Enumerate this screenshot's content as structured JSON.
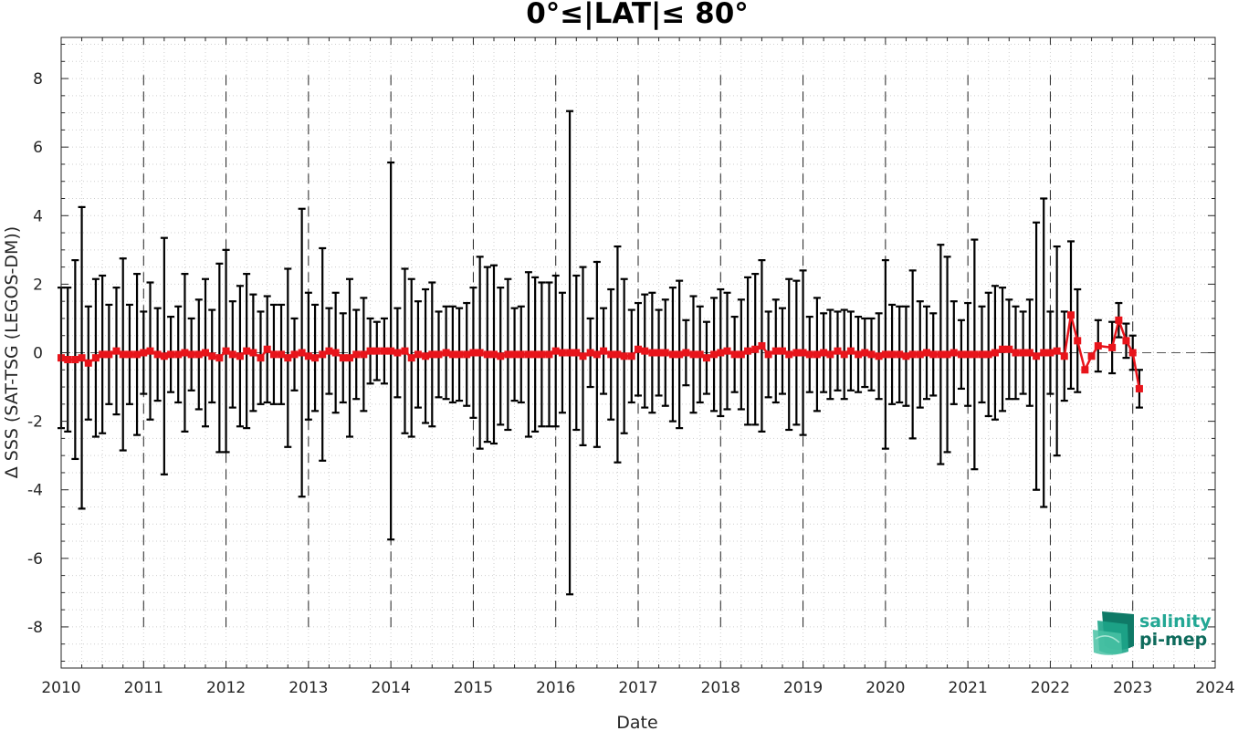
{
  "chart_data": {
    "type": "line",
    "title": "0°≤|LAT|≤ 80°",
    "xlabel": "Date",
    "ylabel": "Δ SSS (SAT-TSG (LEGOS-DM))",
    "xlim": [
      2010,
      2024
    ],
    "ylim": [
      -9.2,
      9.2
    ],
    "x_ticks": [
      2010,
      2011,
      2012,
      2013,
      2014,
      2015,
      2016,
      2017,
      2018,
      2019,
      2020,
      2021,
      2022,
      2023,
      2024
    ],
    "x_tick_labels": [
      "2010",
      "2011",
      "2012",
      "2013",
      "2014",
      "2015",
      "2016",
      "2017",
      "2018",
      "2019",
      "2020",
      "2021",
      "2022",
      "2023",
      "2024"
    ],
    "y_ticks": [
      -8,
      -6,
      -4,
      -2,
      0,
      2,
      4,
      6,
      8
    ],
    "y_tick_labels": [
      "-8",
      "-6",
      "-4",
      "-2",
      "0",
      "2",
      "4",
      "6",
      "8"
    ],
    "grid": "minor dotted",
    "reference_line": 0,
    "year_markers": [
      2011,
      2012,
      2013,
      2014,
      2015,
      2016,
      2017,
      2018,
      2019,
      2020,
      2021,
      2022,
      2023
    ],
    "series": [
      {
        "color": "#e8141b",
        "errorbar_color": "#000000",
        "points": [
          [
            2010.0,
            -0.15,
            2.05
          ],
          [
            2010.08,
            -0.2,
            2.1
          ],
          [
            2010.17,
            -0.2,
            2.9
          ],
          [
            2010.25,
            -0.15,
            4.4
          ],
          [
            2010.33,
            -0.3,
            1.65
          ],
          [
            2010.42,
            -0.15,
            2.3
          ],
          [
            2010.5,
            -0.05,
            2.3
          ],
          [
            2010.58,
            -0.05,
            1.45
          ],
          [
            2010.67,
            0.05,
            1.85
          ],
          [
            2010.75,
            -0.05,
            2.8
          ],
          [
            2010.83,
            -0.05,
            1.45
          ],
          [
            2010.92,
            -0.05,
            2.35
          ],
          [
            2011.0,
            0.0,
            1.2
          ],
          [
            2011.08,
            0.05,
            2.0
          ],
          [
            2011.17,
            -0.05,
            1.35
          ],
          [
            2011.25,
            -0.1,
            3.45
          ],
          [
            2011.33,
            -0.05,
            1.1
          ],
          [
            2011.42,
            -0.05,
            1.4
          ],
          [
            2011.5,
            0.0,
            2.3
          ],
          [
            2011.58,
            -0.05,
            1.05
          ],
          [
            2011.67,
            -0.05,
            1.6
          ],
          [
            2011.75,
            0.0,
            2.15
          ],
          [
            2011.83,
            -0.1,
            1.35
          ],
          [
            2011.92,
            -0.15,
            2.75
          ],
          [
            2012.0,
            0.05,
            2.95
          ],
          [
            2012.08,
            -0.05,
            1.55
          ],
          [
            2012.17,
            -0.1,
            2.05
          ],
          [
            2012.25,
            0.05,
            2.25
          ],
          [
            2012.33,
            0.0,
            1.7
          ],
          [
            2012.42,
            -0.15,
            1.35
          ],
          [
            2012.5,
            0.1,
            1.55
          ],
          [
            2012.58,
            -0.05,
            1.45
          ],
          [
            2012.67,
            -0.05,
            1.45
          ],
          [
            2012.75,
            -0.15,
            2.6
          ],
          [
            2012.83,
            -0.05,
            1.05
          ],
          [
            2012.92,
            0.0,
            4.2
          ],
          [
            2013.0,
            -0.1,
            1.85
          ],
          [
            2013.08,
            -0.15,
            1.55
          ],
          [
            2013.17,
            -0.05,
            3.1
          ],
          [
            2013.25,
            0.05,
            1.25
          ],
          [
            2013.33,
            0.0,
            1.75
          ],
          [
            2013.42,
            -0.15,
            1.3
          ],
          [
            2013.5,
            -0.15,
            2.3
          ],
          [
            2013.58,
            -0.05,
            1.3
          ],
          [
            2013.67,
            -0.05,
            1.65
          ],
          [
            2013.75,
            0.05,
            0.95
          ],
          [
            2013.83,
            0.05,
            0.85
          ],
          [
            2013.92,
            0.05,
            0.95
          ],
          [
            2014.0,
            0.05,
            5.5
          ],
          [
            2014.08,
            0.0,
            1.3
          ],
          [
            2014.17,
            0.05,
            2.4
          ],
          [
            2014.25,
            -0.15,
            2.3
          ],
          [
            2014.33,
            -0.05,
            1.55
          ],
          [
            2014.42,
            -0.1,
            1.95
          ],
          [
            2014.5,
            -0.05,
            2.1
          ],
          [
            2014.58,
            -0.05,
            1.25
          ],
          [
            2014.67,
            0.0,
            1.35
          ],
          [
            2014.75,
            -0.05,
            1.4
          ],
          [
            2014.83,
            -0.05,
            1.35
          ],
          [
            2014.92,
            -0.05,
            1.5
          ],
          [
            2015.0,
            0.0,
            1.9
          ],
          [
            2015.08,
            0.0,
            2.8
          ],
          [
            2015.17,
            -0.05,
            2.55
          ],
          [
            2015.25,
            -0.05,
            2.6
          ],
          [
            2015.33,
            -0.1,
            2.0
          ],
          [
            2015.42,
            -0.05,
            2.2
          ],
          [
            2015.5,
            -0.05,
            1.35
          ],
          [
            2015.58,
            -0.05,
            1.4
          ],
          [
            2015.67,
            -0.05,
            2.4
          ],
          [
            2015.75,
            -0.05,
            2.25
          ],
          [
            2015.83,
            -0.05,
            2.1
          ],
          [
            2015.92,
            -0.05,
            2.1
          ],
          [
            2016.0,
            0.05,
            2.2
          ],
          [
            2016.08,
            0.0,
            1.75
          ],
          [
            2016.17,
            0.0,
            7.05
          ],
          [
            2016.25,
            0.0,
            2.25
          ],
          [
            2016.33,
            -0.1,
            2.6
          ],
          [
            2016.42,
            0.0,
            1.0
          ],
          [
            2016.5,
            -0.05,
            2.7
          ],
          [
            2016.58,
            0.05,
            1.25
          ],
          [
            2016.67,
            -0.05,
            1.9
          ],
          [
            2016.75,
            -0.05,
            3.15
          ],
          [
            2016.83,
            -0.1,
            2.25
          ],
          [
            2016.92,
            -0.1,
            1.35
          ],
          [
            2017.0,
            0.1,
            1.35
          ],
          [
            2017.08,
            0.05,
            1.65
          ],
          [
            2017.17,
            0.0,
            1.75
          ],
          [
            2017.25,
            0.0,
            1.25
          ],
          [
            2017.33,
            0.0,
            1.55
          ],
          [
            2017.42,
            -0.05,
            1.95
          ],
          [
            2017.5,
            -0.05,
            2.15
          ],
          [
            2017.58,
            0.0,
            0.95
          ],
          [
            2017.67,
            -0.05,
            1.7
          ],
          [
            2017.75,
            -0.05,
            1.4
          ],
          [
            2017.83,
            -0.15,
            1.05
          ],
          [
            2017.92,
            -0.05,
            1.65
          ],
          [
            2018.0,
            0.0,
            1.85
          ],
          [
            2018.08,
            0.05,
            1.7
          ],
          [
            2018.17,
            -0.05,
            1.1
          ],
          [
            2018.25,
            -0.05,
            1.6
          ],
          [
            2018.33,
            0.05,
            2.15
          ],
          [
            2018.42,
            0.1,
            2.2
          ],
          [
            2018.5,
            0.2,
            2.5
          ],
          [
            2018.58,
            -0.05,
            1.25
          ],
          [
            2018.67,
            0.05,
            1.5
          ],
          [
            2018.75,
            0.05,
            1.25
          ],
          [
            2018.83,
            -0.05,
            2.2
          ],
          [
            2018.92,
            0.0,
            2.1
          ],
          [
            2019.0,
            0.0,
            2.4
          ],
          [
            2019.08,
            -0.05,
            1.1
          ],
          [
            2019.17,
            -0.05,
            1.65
          ],
          [
            2019.25,
            0.0,
            1.15
          ],
          [
            2019.33,
            -0.05,
            1.3
          ],
          [
            2019.42,
            0.05,
            1.15
          ],
          [
            2019.5,
            -0.05,
            1.3
          ],
          [
            2019.58,
            0.05,
            1.15
          ],
          [
            2019.67,
            -0.05,
            1.1
          ],
          [
            2019.75,
            0.0,
            1.0
          ],
          [
            2019.83,
            -0.05,
            1.05
          ],
          [
            2019.92,
            -0.1,
            1.25
          ],
          [
            2020.0,
            -0.05,
            2.75
          ],
          [
            2020.08,
            -0.05,
            1.45
          ],
          [
            2020.17,
            -0.05,
            1.4
          ],
          [
            2020.25,
            -0.1,
            1.45
          ],
          [
            2020.33,
            -0.05,
            2.45
          ],
          [
            2020.42,
            -0.05,
            1.55
          ],
          [
            2020.5,
            0.0,
            1.35
          ],
          [
            2020.58,
            -0.05,
            1.2
          ],
          [
            2020.67,
            -0.05,
            3.2
          ],
          [
            2020.75,
            -0.05,
            2.85
          ],
          [
            2020.83,
            0.0,
            1.5
          ],
          [
            2020.92,
            -0.05,
            1.0
          ],
          [
            2021.0,
            -0.05,
            1.5
          ],
          [
            2021.08,
            -0.05,
            3.35
          ],
          [
            2021.17,
            -0.05,
            1.4
          ],
          [
            2021.25,
            -0.05,
            1.8
          ],
          [
            2021.33,
            0.0,
            1.95
          ],
          [
            2021.42,
            0.1,
            1.8
          ],
          [
            2021.5,
            0.1,
            1.45
          ],
          [
            2021.58,
            0.0,
            1.35
          ],
          [
            2021.67,
            0.0,
            1.2
          ],
          [
            2021.75,
            0.0,
            1.55
          ],
          [
            2021.83,
            -0.1,
            3.9
          ],
          [
            2021.92,
            0.0,
            4.5
          ],
          [
            2022.0,
            0.0,
            1.2
          ],
          [
            2022.08,
            0.05,
            3.05
          ],
          [
            2022.17,
            -0.1,
            1.3
          ],
          [
            2022.25,
            1.1,
            2.15
          ],
          [
            2022.33,
            0.35,
            1.5
          ],
          [
            2022.42,
            -0.5,
            null
          ],
          [
            2022.5,
            -0.1,
            null
          ],
          [
            2022.58,
            0.2,
            0.75
          ],
          [
            2022.75,
            0.15,
            0.75
          ],
          [
            2022.83,
            0.95,
            0.5
          ],
          [
            2022.92,
            0.35,
            0.5
          ],
          [
            2023.0,
            0.0,
            0.5
          ],
          [
            2023.08,
            -1.05,
            0.55
          ]
        ]
      }
    ]
  },
  "logo": {
    "line1": "salinity",
    "line2": "pi-mep"
  }
}
